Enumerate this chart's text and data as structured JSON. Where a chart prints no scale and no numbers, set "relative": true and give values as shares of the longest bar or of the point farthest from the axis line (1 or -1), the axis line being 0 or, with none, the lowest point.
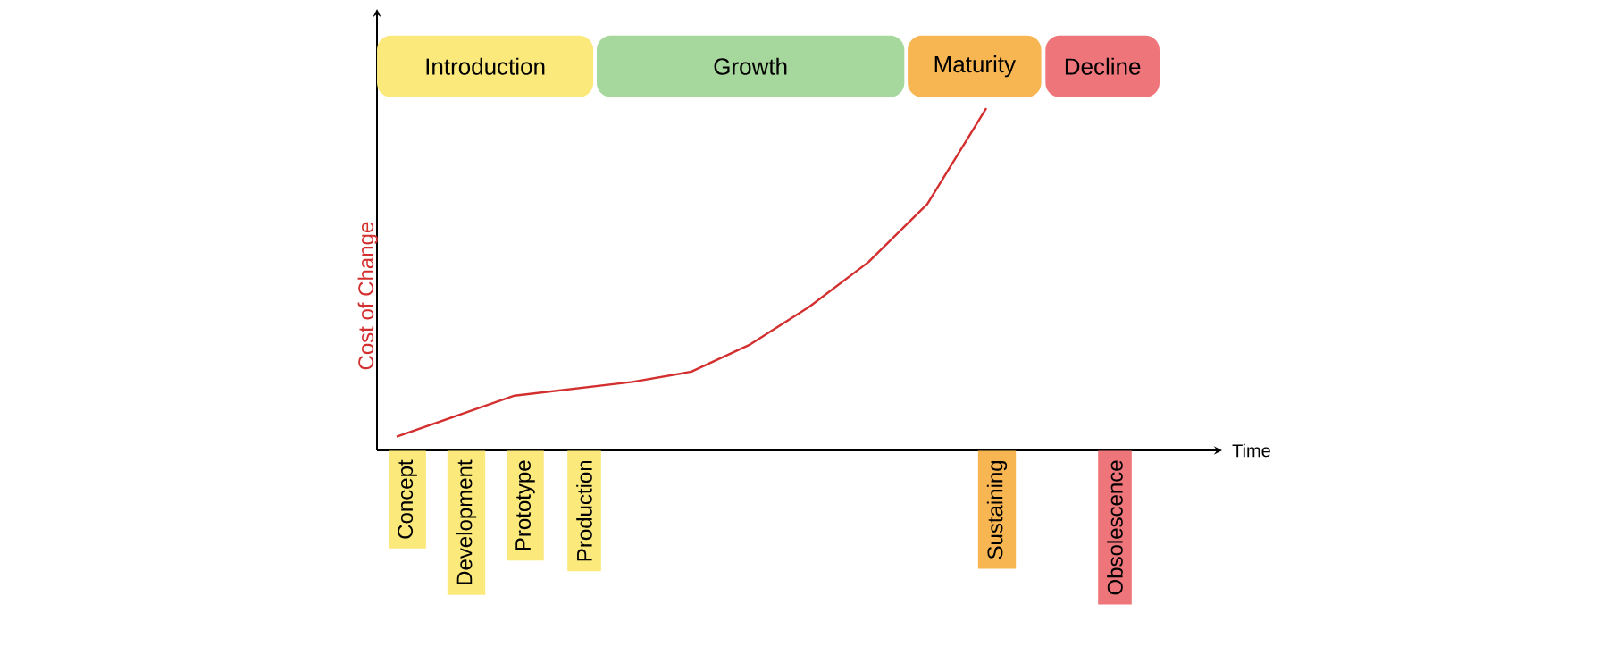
{
  "chart_data": {
    "type": "line",
    "relative": true,
    "xlabel": "Time",
    "ylabel": "Cost of Change",
    "color": "#d32f2f",
    "categories": [
      "Concept",
      "Development",
      "Prototype",
      "Production",
      null,
      null,
      null,
      null,
      null,
      null,
      "Sustaining",
      null,
      "Obsolescence"
    ],
    "values": [
      0.04,
      0.1,
      0.16,
      0.18,
      0.2,
      0.23,
      0.31,
      0.42,
      0.55,
      0.72,
      1.0,
      null,
      null
    ],
    "tick_labels": "x",
    "annotations": [
      "Introduction",
      "Growth",
      "Maturity",
      "Decline"
    ]
  }
}
